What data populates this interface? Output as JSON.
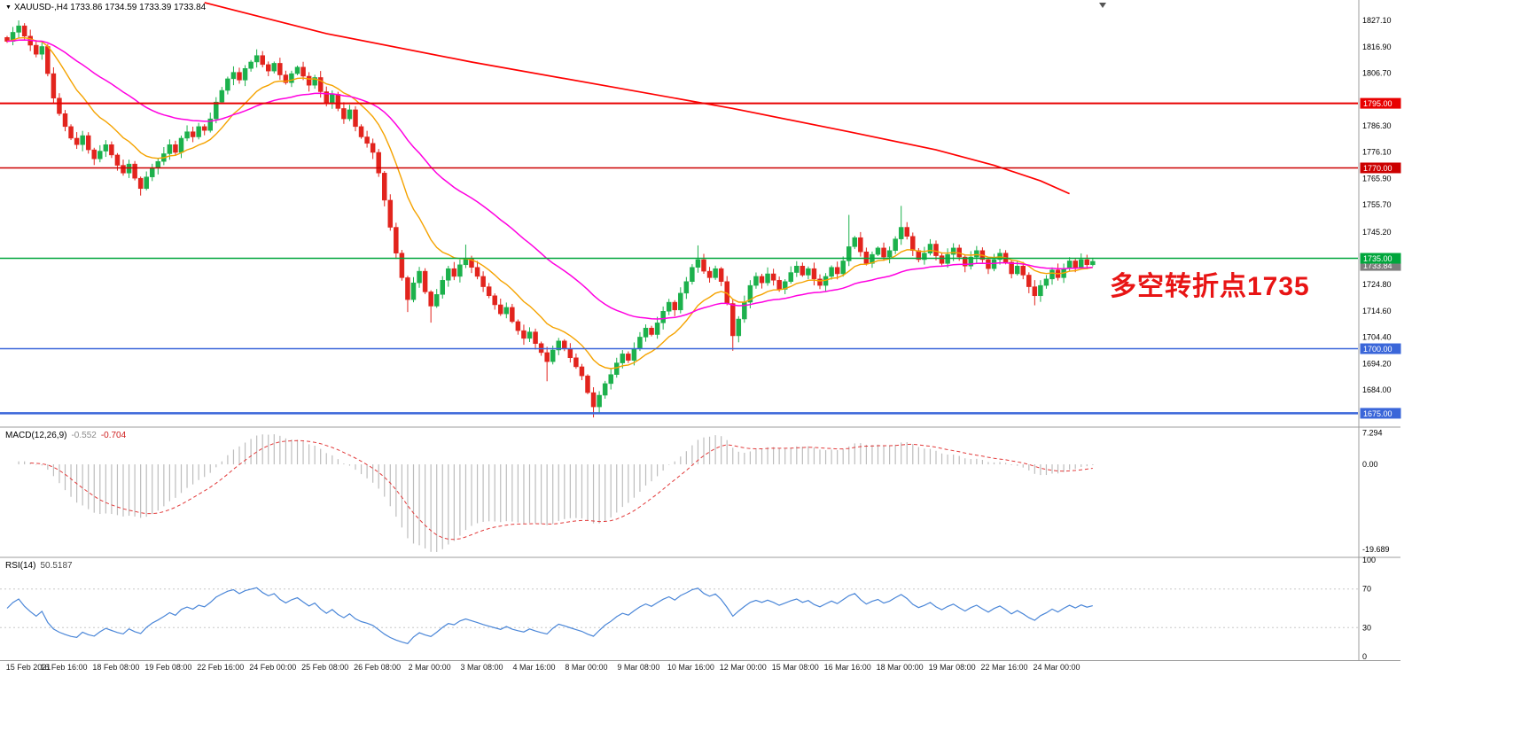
{
  "header": {
    "title": "XAUUSD-,H4",
    "ohlc": "1733.86 1734.59 1733.39 1733.84"
  },
  "icons": {
    "symbol_menu": "▼"
  },
  "annotation": {
    "text": "多空转折点1735",
    "color": "#e81414"
  },
  "colors": {
    "background": "#ffffff",
    "bull": "#1cb14c",
    "bear": "#e2241d",
    "ma_fast": "#f5a300",
    "ma_slow": "#ff00e0",
    "ma_long": "#ff0000",
    "macd_hist": "#bdbdbd",
    "macd_signal": "#e23b3b",
    "rsi_line": "#4a86d8",
    "separator": "#9c9c9c",
    "axis_text": "#000000",
    "time_text": "#1b1b1b",
    "current_badge": "#7d7d7d"
  },
  "hlines": [
    {
      "price": 1795.0,
      "label": "1795.00",
      "color": "#e80000",
      "width": 2
    },
    {
      "price": 1770.0,
      "label": "1770.00",
      "color": "#cc0000",
      "width": 1.5
    },
    {
      "price": 1735.0,
      "label": "1735.00",
      "color": "#00a63c",
      "width": 1.5
    },
    {
      "price": 1700.0,
      "label": "1700.00",
      "color": "#3a66d9",
      "width": 1.5
    },
    {
      "price": 1675.0,
      "label": "1675.00",
      "color": "#3a66d9",
      "width": 2.5
    }
  ],
  "price_axis": {
    "ticks": [
      {
        "v": 1827.1,
        "t": "1827.10"
      },
      {
        "v": 1816.9,
        "t": "1816.90"
      },
      {
        "v": 1806.7,
        "t": "1806.70"
      },
      {
        "v": 1786.3,
        "t": "1786.30"
      },
      {
        "v": 1776.1,
        "t": "1776.10"
      },
      {
        "v": 1765.9,
        "t": "1765.90"
      },
      {
        "v": 1755.7,
        "t": "1755.70"
      },
      {
        "v": 1745.2,
        "t": "1745.20"
      },
      {
        "v": 1724.8,
        "t": "1724.80"
      },
      {
        "v": 1714.6,
        "t": "1714.60"
      },
      {
        "v": 1704.4,
        "t": "1704.40"
      },
      {
        "v": 1694.2,
        "t": "1694.20"
      },
      {
        "v": 1684.0,
        "t": "1684.00"
      }
    ],
    "current": {
      "v": 1733.84,
      "t": "1733.84"
    }
  },
  "panels": {
    "macd": {
      "name": "MACD(12,26,9)",
      "value1": "-0.552",
      "value2": "-0.704",
      "params": {
        "fast": 12,
        "slow": 26,
        "signal": 9
      },
      "domain": [
        -20.9,
        7.8
      ],
      "ticks": [
        {
          "v": 7.294,
          "t": "7.294"
        },
        {
          "v": 0,
          "t": "0.00"
        },
        {
          "v": -19.689,
          "t": "-19.689"
        }
      ]
    },
    "rsi": {
      "name": "RSI(14)",
      "value": "50.5187",
      "period": 14,
      "levels": [
        70,
        30
      ],
      "ticks": [
        {
          "v": 100,
          "t": "100"
        },
        {
          "v": 70,
          "t": "70"
        },
        {
          "v": 30,
          "t": "30"
        },
        {
          "v": 0,
          "t": "0"
        }
      ]
    }
  },
  "time_axis": {
    "labels": [
      "15 Feb 2021",
      "16 Feb 16:00",
      "18 Feb 08:00",
      "19 Feb 08:00",
      "22 Feb 16:00",
      "24 Feb 00:00",
      "25 Feb 08:00",
      "26 Feb 08:00",
      "2 Mar 00:00",
      "3 Mar 08:00",
      "4 Mar 16:00",
      "8 Mar 00:00",
      "9 Mar 08:00",
      "10 Mar 16:00",
      "12 Mar 00:00",
      "15 Mar 08:00",
      "16 Mar 16:00",
      "18 Mar 00:00",
      "19 Mar 08:00",
      "22 Mar 16:00",
      "24 Mar 00:00"
    ],
    "candles_per_label": 9
  },
  "chart_data": {
    "type": "candlestick",
    "symbol": "XAUUSD-",
    "timeframe": "H4",
    "title": "XAUUSD-,H4 1733.86 1734.59 1733.39 1733.84",
    "current_ohlc": {
      "open": 1733.86,
      "high": 1734.59,
      "low": 1733.39,
      "close": 1733.84
    },
    "price_domain": [
      1670,
      1835
    ],
    "closes": [
      1819.0,
      1822.5,
      1825.0,
      1821.0,
      1817.5,
      1814.0,
      1817.0,
      1806.5,
      1797.0,
      1791.0,
      1786.0,
      1781.5,
      1779.0,
      1782.5,
      1777.0,
      1773.5,
      1776.5,
      1779.0,
      1775.0,
      1771.0,
      1768.0,
      1771.5,
      1766.0,
      1762.0,
      1766.5,
      1770.0,
      1772.5,
      1775.5,
      1779.0,
      1776.0,
      1781.5,
      1784.0,
      1782.0,
      1786.0,
      1784.5,
      1789.0,
      1795.5,
      1800.0,
      1804.5,
      1807.0,
      1804.0,
      1808.5,
      1811.0,
      1813.5,
      1810.0,
      1807.5,
      1810.5,
      1806.0,
      1803.0,
      1806.5,
      1809.0,
      1805.5,
      1802.0,
      1805.0,
      1799.5,
      1795.0,
      1798.5,
      1793.0,
      1789.0,
      1792.5,
      1786.0,
      1782.0,
      1779.5,
      1776.0,
      1768.0,
      1757.5,
      1747.0,
      1737.0,
      1727.5,
      1719.0,
      1725.5,
      1730.0,
      1722.0,
      1716.5,
      1721.0,
      1726.5,
      1731.0,
      1728.0,
      1732.5,
      1735.0,
      1731.5,
      1728.0,
      1724.0,
      1720.5,
      1717.0,
      1713.5,
      1716.0,
      1710.5,
      1707.0,
      1704.0,
      1706.5,
      1702.0,
      1698.5,
      1695.0,
      1699.5,
      1703.0,
      1700.0,
      1696.5,
      1693.0,
      1689.5,
      1683.0,
      1677.5,
      1682.0,
      1686.5,
      1690.0,
      1694.5,
      1698.0,
      1695.5,
      1700.0,
      1704.5,
      1708.0,
      1705.5,
      1710.0,
      1714.5,
      1718.0,
      1715.0,
      1721.5,
      1726.0,
      1731.5,
      1734.5,
      1730.0,
      1727.5,
      1731.0,
      1726.0,
      1717.5,
      1705.0,
      1711.5,
      1718.0,
      1724.5,
      1728.0,
      1725.5,
      1729.0,
      1726.5,
      1723.0,
      1726.0,
      1729.5,
      1732.0,
      1728.5,
      1731.0,
      1727.0,
      1724.5,
      1728.0,
      1731.5,
      1729.0,
      1734.0,
      1739.5,
      1743.0,
      1737.5,
      1733.0,
      1736.5,
      1739.0,
      1735.5,
      1738.0,
      1742.5,
      1747.0,
      1743.5,
      1738.0,
      1734.5,
      1737.0,
      1740.5,
      1736.0,
      1733.0,
      1736.5,
      1739.0,
      1735.5,
      1732.0,
      1735.5,
      1738.0,
      1734.5,
      1731.0,
      1734.5,
      1737.0,
      1733.5,
      1729.0,
      1732.0,
      1728.5,
      1724.0,
      1720.5,
      1724.5,
      1727.0,
      1730.5,
      1727.5,
      1731.0,
      1734.0,
      1731.5,
      1734.5,
      1732.5,
      1733.84
    ],
    "high_overrides": {
      "2": 1827.1,
      "43": 1815.9,
      "79": 1740.3,
      "119": 1740.0,
      "145": 1751.8,
      "154": 1755.3
    },
    "low_overrides": {
      "23": 1759.3,
      "69": 1714.2,
      "73": 1710.1,
      "93": 1687.4,
      "101": 1673.4,
      "125": 1699.2,
      "177": 1716.8
    },
    "moving_averages": [
      {
        "name": "ma-fast",
        "period": 13
      },
      {
        "name": "ma-slow",
        "period": 40
      }
    ],
    "long_ma_points": [
      [
        34,
        1834
      ],
      [
        55,
        1822
      ],
      [
        80,
        1811
      ],
      [
        105,
        1801
      ],
      [
        125,
        1793
      ],
      [
        145,
        1784
      ],
      [
        160,
        1777
      ],
      [
        170,
        1771
      ],
      [
        178,
        1765
      ],
      [
        183,
        1760
      ]
    ]
  }
}
